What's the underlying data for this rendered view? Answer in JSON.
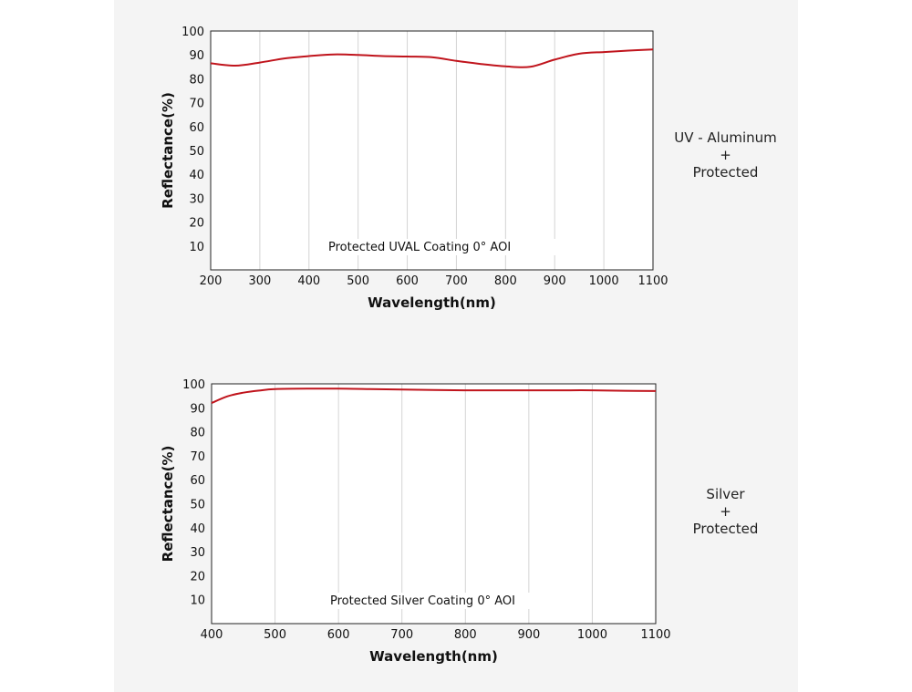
{
  "chart_data": [
    {
      "type": "line",
      "annotation": "Protected UVAL Coating  0°  AOI",
      "xlabel": "Wavelength(nm)",
      "ylabel": "Reflectance(%)",
      "xlim": [
        200,
        1100
      ],
      "ylim": [
        0,
        100
      ],
      "xticks": [
        200,
        300,
        400,
        500,
        600,
        700,
        800,
        900,
        1000,
        1100
      ],
      "yticks": [
        10,
        20,
        30,
        40,
        50,
        60,
        70,
        80,
        90,
        100
      ],
      "grid": true,
      "line_color": "#c0141c",
      "series": [
        {
          "x": [
            200,
            250,
            300,
            350,
            400,
            450,
            500,
            550,
            600,
            650,
            700,
            750,
            800,
            850,
            900,
            950,
            1000,
            1050,
            1100
          ],
          "values": [
            86.5,
            85.5,
            86.8,
            88.5,
            89.5,
            90.2,
            90.0,
            89.5,
            89.3,
            89.0,
            87.5,
            86.2,
            85.2,
            85.0,
            88.0,
            90.5,
            91.2,
            91.8,
            92.3
          ]
        }
      ],
      "side_label": [
        "UV - Aluminum",
        "+",
        "Protected"
      ]
    },
    {
      "type": "line",
      "annotation": "Protected Silver Coating  0°  AOI",
      "xlabel": "Wavelength(nm)",
      "ylabel": "Reflectance(%)",
      "xlim": [
        400,
        1100
      ],
      "ylim": [
        0,
        100
      ],
      "xticks": [
        400,
        500,
        600,
        700,
        800,
        900,
        1000,
        1100
      ],
      "yticks": [
        10,
        20,
        30,
        40,
        50,
        60,
        70,
        80,
        90,
        100
      ],
      "grid": true,
      "line_color": "#c0141c",
      "series": [
        {
          "x": [
            400,
            425,
            450,
            475,
            500,
            550,
            600,
            650,
            700,
            750,
            800,
            850,
            900,
            950,
            1000,
            1050,
            1100
          ],
          "values": [
            92.0,
            94.8,
            96.3,
            97.2,
            97.8,
            98.0,
            98.0,
            97.8,
            97.6,
            97.4,
            97.3,
            97.3,
            97.3,
            97.3,
            97.3,
            97.1,
            97.0
          ]
        }
      ],
      "side_label": [
        "Silver",
        "+",
        "Protected"
      ]
    }
  ]
}
